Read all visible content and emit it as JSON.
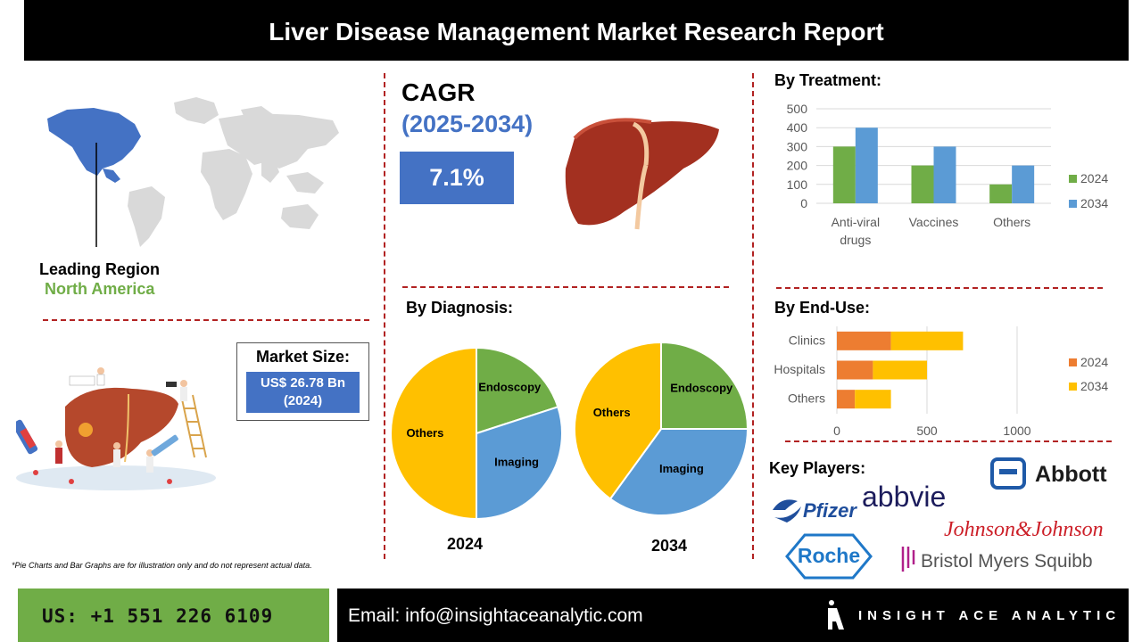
{
  "header": {
    "title": "Liver Disease Management Market Research Report"
  },
  "region": {
    "label": "Leading Region",
    "value": "North America"
  },
  "market_size": {
    "title": "Market Size:",
    "value_line1": "US$ 26.78 Bn",
    "value_line2": "(2024)"
  },
  "cagr": {
    "title": "CAGR",
    "years": "(2025-2034)",
    "value": "7.1%"
  },
  "sections": {
    "treatment": "By Treatment:",
    "end_use": "By End-Use:",
    "diagnosis": "By Diagnosis:",
    "key_players": "Key Players:"
  },
  "key_players": {
    "pfizer": "Pfizer",
    "abbvie": "abbvie",
    "abbott": "Abbott",
    "jnj": "Johnson&Johnson",
    "roche": "Roche",
    "bms": "Bristol Myers Squibb"
  },
  "footnote": "*Pie Charts and Bar Graphs are for illustration only and do not represent actual data.",
  "footer": {
    "phone": "US: +1 551 226 6109",
    "email": "Email: info@insightaceanalytic.com",
    "brand": "INSIGHT ACE ANALYTIC"
  },
  "colors": {
    "green": "#70ad47",
    "blue": "#5b9bd5",
    "orange": "#ed7d31",
    "yellow": "#ffc000",
    "accent_blue": "#4472c4",
    "divider_red": "#b22222"
  },
  "chart_data": [
    {
      "id": "treatment",
      "type": "bar",
      "categories": [
        "Anti-viral drugs",
        "Vaccines",
        "Others"
      ],
      "category_lines": [
        [
          "Anti-viral",
          "drugs"
        ],
        [
          "Vaccines"
        ],
        [
          "Others"
        ]
      ],
      "series": [
        {
          "name": "2024",
          "values": [
            300,
            200,
            100
          ]
        },
        {
          "name": "2034",
          "values": [
            400,
            300,
            200
          ]
        }
      ],
      "ylim": [
        0,
        500
      ],
      "yticks": [
        0,
        100,
        200,
        300,
        400,
        500
      ],
      "grid": true,
      "legend": "right"
    },
    {
      "id": "end_use",
      "type": "bar",
      "orientation": "horizontal",
      "stacked": true,
      "categories": [
        "Clinics",
        "Hospitals",
        "Others"
      ],
      "series": [
        {
          "name": "2024",
          "values": [
            300,
            200,
            100
          ]
        },
        {
          "name": "2034",
          "values": [
            400,
            300,
            200
          ]
        }
      ],
      "xlim": [
        0,
        1200
      ],
      "xticks": [
        0,
        500,
        1000
      ],
      "grid": true,
      "legend": "right"
    },
    {
      "id": "diagnosis_2024",
      "type": "pie",
      "title": "2024",
      "slices": [
        {
          "label": "Endoscopy",
          "value": 20
        },
        {
          "label": "Imaging",
          "value": 30
        },
        {
          "label": "Others",
          "value": 50
        }
      ]
    },
    {
      "id": "diagnosis_2034",
      "type": "pie",
      "title": "2034",
      "slices": [
        {
          "label": "Endoscopy",
          "value": 25
        },
        {
          "label": "Imaging",
          "value": 35
        },
        {
          "label": "Others",
          "value": 40
        }
      ]
    }
  ]
}
